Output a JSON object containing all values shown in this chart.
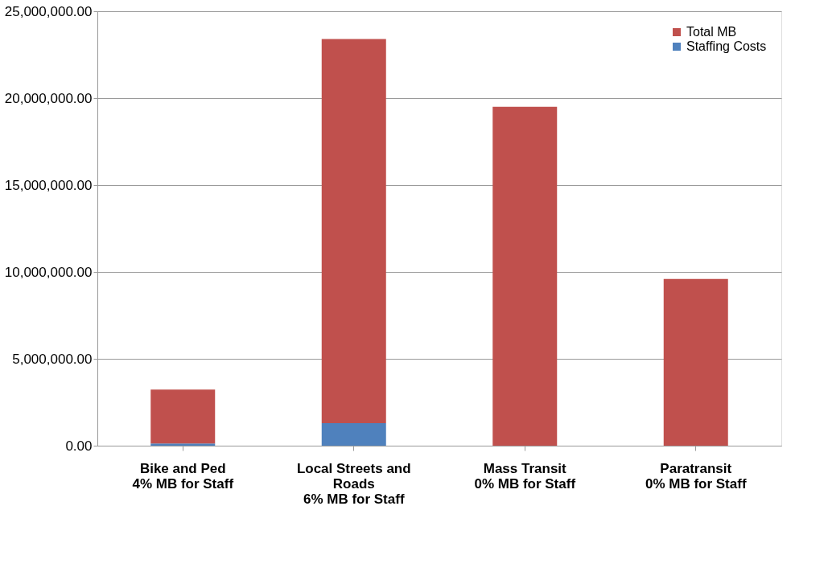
{
  "chart_data": {
    "type": "bar",
    "stacked": true,
    "categories": [
      "Bike and Ped\n4% MB for Staff",
      "Local Streets and\nRoads\n6% MB for Staff",
      "Mass Transit\n0% MB for Staff",
      "Paratransit\n0% MB for Staff"
    ],
    "series": [
      {
        "name": "Staffing Costs",
        "color": "#4f81bd",
        "values": [
          130000,
          1300000,
          0,
          0
        ]
      },
      {
        "name": "Total MB",
        "color": "#c0504d",
        "values": [
          3100000,
          22100000,
          19500000,
          9600000
        ]
      }
    ],
    "ylim": [
      0,
      25000000
    ],
    "yticks": [
      {
        "value": 0,
        "label": "0.00"
      },
      {
        "value": 5000000,
        "label": "5,000,000.00"
      },
      {
        "value": 10000000,
        "label": "10,000,000.00"
      },
      {
        "value": 15000000,
        "label": "15,000,000.00"
      },
      {
        "value": 20000000,
        "label": "20,000,000.00"
      },
      {
        "value": 25000000,
        "label": "25,000,000.00"
      }
    ],
    "grid": "y",
    "legend": "top right"
  }
}
